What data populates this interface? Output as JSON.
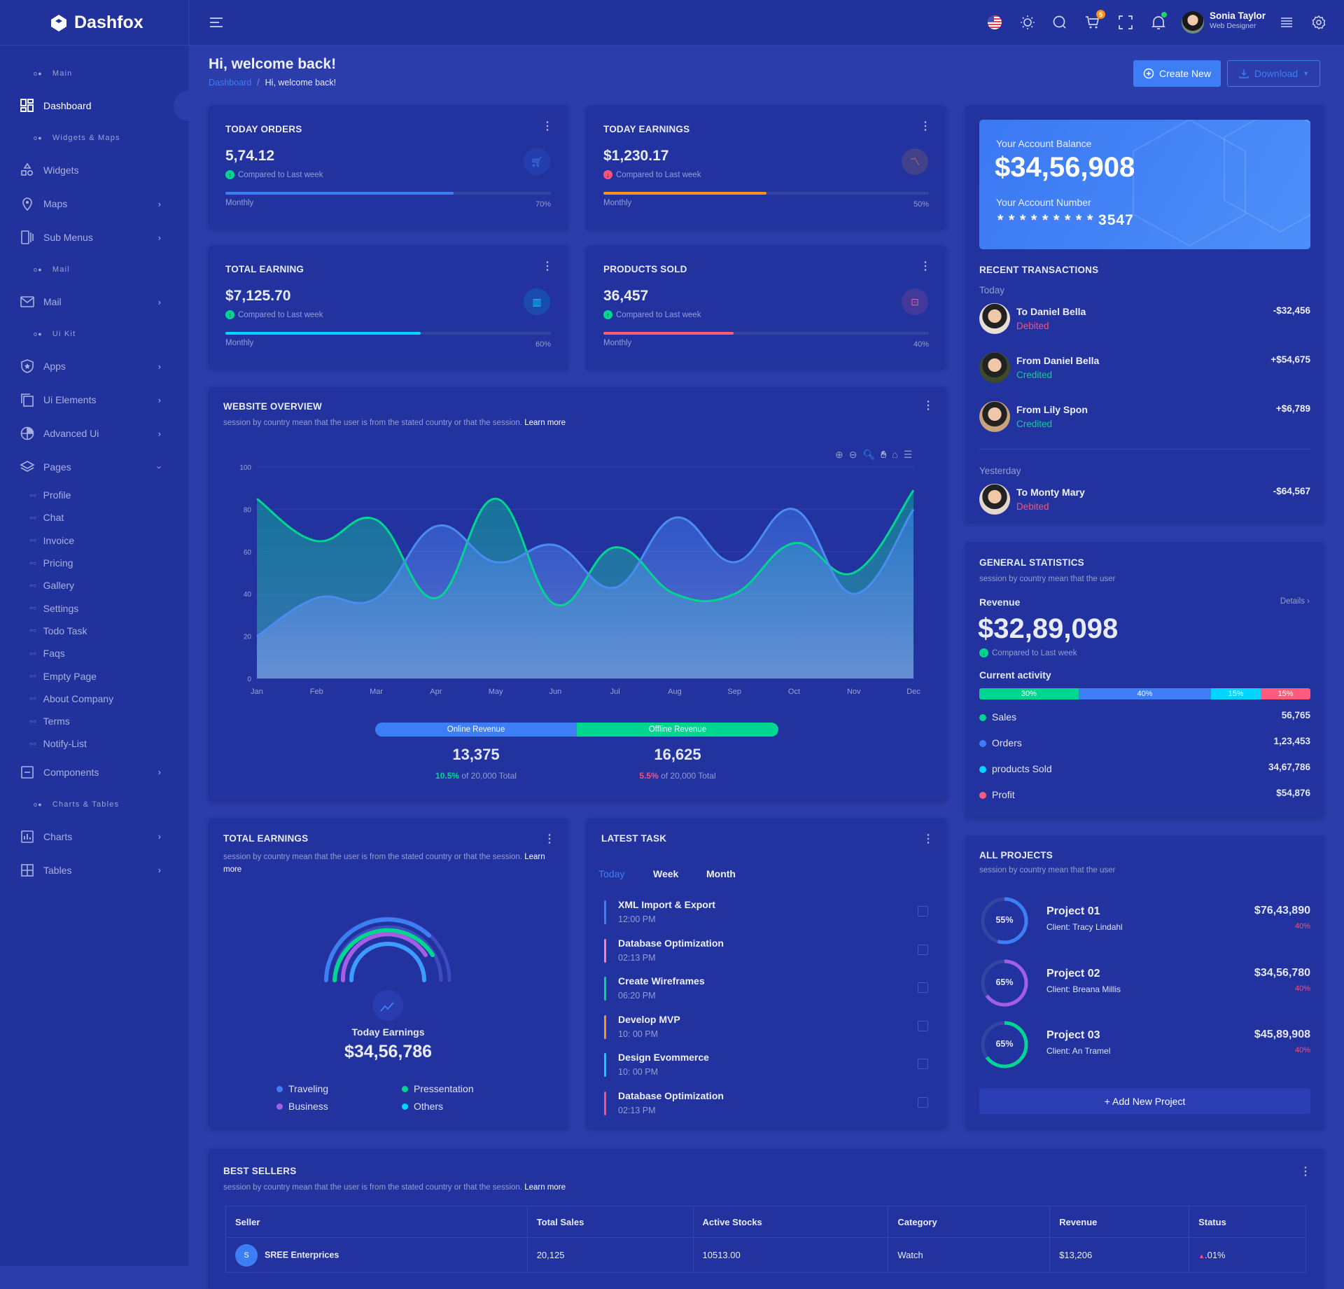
{
  "app": {
    "name": "Dashfox"
  },
  "header": {
    "cart_count": "5",
    "user": {
      "name": "Sonia Taylor",
      "role": "Web Designer"
    }
  },
  "sidebar": {
    "sections": [
      {
        "label": "Main",
        "items": [
          {
            "label": "Dashboard",
            "icon": "dashboard-icon",
            "active": true
          }
        ]
      },
      {
        "label": "Widgets & Maps",
        "items": [
          {
            "label": "Widgets",
            "icon": "widgets-icon"
          },
          {
            "label": "Maps",
            "icon": "map-pin-icon",
            "chevron": true
          },
          {
            "label": "Sub Menus",
            "icon": "sub-menus-icon",
            "chevron": true
          }
        ]
      },
      {
        "label": "Mail",
        "items": [
          {
            "label": "Mail",
            "icon": "mail-icon",
            "chevron": true
          }
        ]
      },
      {
        "label": "Ui Kit",
        "items": [
          {
            "label": "Apps",
            "icon": "apps-icon",
            "chevron": true
          },
          {
            "label": "Ui Elements",
            "icon": "ui-elements-icon",
            "chevron": true
          },
          {
            "label": "Advanced Ui",
            "icon": "advanced-ui-icon",
            "chevron": true
          },
          {
            "label": "Pages",
            "icon": "pages-icon",
            "expanded": true,
            "children": [
              "Profile",
              "Chat",
              "Invoice",
              "Pricing",
              "Gallery",
              "Settings",
              "Todo Task",
              "Faqs",
              "Empty Page",
              "About Company",
              "Terms",
              "Notify-List"
            ]
          },
          {
            "label": "Components",
            "icon": "components-icon",
            "chevron": true
          }
        ]
      },
      {
        "label": "Charts & Tables",
        "items": [
          {
            "label": "Charts",
            "icon": "charts-icon",
            "chevron": true
          },
          {
            "label": "Tables",
            "icon": "tables-icon",
            "chevron": true
          }
        ]
      }
    ]
  },
  "page": {
    "title": "Hi, welcome back!",
    "breadcrumb": [
      "Dashboard",
      "Hi, welcome back!"
    ],
    "create_label": "Create New",
    "download_label": "Download"
  },
  "stat_cards": [
    {
      "title": "TODAY ORDERS",
      "value": "5,74.12",
      "compare": "Compared to Last week",
      "trend": "up",
      "period": "Monthly",
      "percent": 70,
      "percent_label": "70%",
      "color": "#3d7ef5",
      "icon": "cart-icon"
    },
    {
      "title": "TODAY EARNINGS",
      "value": "$1,230.17",
      "compare": "Compared to Last week",
      "trend": "down",
      "period": "Monthly",
      "percent": 50,
      "percent_label": "50%",
      "color": "#f7931a",
      "icon": "chart-line-icon"
    },
    {
      "title": "TOTAL EARNING",
      "value": "$7,125.70",
      "compare": "Compared to Last week",
      "trend": "up",
      "period": "Monthly",
      "percent": 60,
      "percent_label": "60%",
      "color": "#00d4ff",
      "icon": "bar-chart-icon"
    },
    {
      "title": "PRODUCTS SOLD",
      "value": "36,457",
      "compare": "Compared to Last week",
      "trend": "up",
      "period": "Monthly",
      "percent": 40,
      "percent_label": "40%",
      "color": "#ff5b7a",
      "icon": "briefcase-icon"
    }
  ],
  "overview": {
    "title": "WEBSITE OVERVIEW",
    "desc": "session by country mean that the user is from the stated country or that the session.",
    "learn_more": "Learn more",
    "legend": [
      {
        "label": "Online Revenue",
        "color": "#3d7ef5",
        "value": "13,375",
        "pct": "10.5%",
        "pct_color": "#00d68f",
        "of": "of 20,000 Total"
      },
      {
        "label": "Offline Revenue",
        "color": "#00d68f",
        "value": "16,625",
        "pct": "5.5%",
        "pct_color": "#ff4f7b",
        "of": "of 20,000 Total"
      }
    ]
  },
  "chart_data": {
    "type": "area",
    "title": "WEBSITE OVERVIEW",
    "xlabel": "",
    "ylabel": "",
    "ylim": [
      0,
      100
    ],
    "yticks": [
      0,
      20,
      40,
      60,
      80,
      100
    ],
    "grid": true,
    "categories": [
      "Jan",
      "Feb",
      "Mar",
      "Apr",
      "May",
      "Jun",
      "Jul",
      "Aug",
      "Sep",
      "Oct",
      "Nov",
      "Dec"
    ],
    "series": [
      {
        "name": "Offline Revenue",
        "color": "#00d68f",
        "values": [
          85,
          65,
          75,
          38,
          85,
          35,
          62,
          40,
          40,
          64,
          50,
          89
        ]
      },
      {
        "name": "Online Revenue",
        "color": "#3d7ef5",
        "values": [
          20,
          38,
          38,
          72,
          55,
          63,
          43,
          76,
          55,
          80,
          40,
          80
        ]
      }
    ]
  },
  "balance": {
    "label": "Your Account Balance",
    "amount": "$34,56,908",
    "number_label": "Your Account Number",
    "number": "* * * * * * * * * 3547"
  },
  "transactions": {
    "title": "RECENT TRANSACTIONS",
    "groups": [
      {
        "label": "Today",
        "items": [
          {
            "name": "To Daniel Bella",
            "status": "Debited",
            "amount": "-$32,456"
          },
          {
            "name": "From Daniel Bella",
            "status": "Credited",
            "amount": "+$54,675"
          },
          {
            "name": "From Lily Spon",
            "status": "Credited",
            "amount": "+$6,789"
          }
        ]
      },
      {
        "label": "Yesterday",
        "items": [
          {
            "name": "To Monty Mary",
            "status": "Debited",
            "amount": "-$64,567"
          }
        ]
      }
    ]
  },
  "general_stats": {
    "title": "GENERAL STATISTICS",
    "sub": "session by country mean that the user",
    "revenue_label": "Revenue",
    "details": "Details",
    "revenue": "$32,89,098",
    "compare": "Compared to Last week",
    "activity_label": "Current activity",
    "segments": [
      {
        "label": "30%",
        "pct": 30,
        "color": "#00d68f"
      },
      {
        "label": "40%",
        "pct": 40,
        "color": "#3d7ef5"
      },
      {
        "label": "15%",
        "pct": 15,
        "color": "#00d4ff"
      },
      {
        "label": "15%",
        "pct": 15,
        "color": "#ff5b7a"
      }
    ],
    "rows": [
      {
        "label": "Sales",
        "value": "56,765",
        "color": "#00d68f"
      },
      {
        "label": "Orders",
        "value": "1,23,453",
        "color": "#3d7ef5"
      },
      {
        "label": "products Sold",
        "value": "34,67,786",
        "color": "#00d4ff"
      },
      {
        "label": "Profit",
        "value": "$54,876",
        "color": "#ff5b7a"
      }
    ]
  },
  "total_earnings": {
    "title": "TOTAL EARNINGS",
    "desc": "session by country mean that the user is from the stated country or that the session.",
    "learn_more": "Learn more",
    "label": "Today Earnings",
    "value": "$34,56,786",
    "legend": [
      {
        "label": "Traveling",
        "color": "#3d7ef5"
      },
      {
        "label": "Pressentation",
        "color": "#00d68f"
      },
      {
        "label": "Business",
        "color": "#a45ee6"
      },
      {
        "label": "Others",
        "color": "#00d4ff"
      }
    ]
  },
  "tasks": {
    "title": "LATEST TASK",
    "tabs": [
      "Today",
      "Week",
      "Month"
    ],
    "items": [
      {
        "title": "XML Import & Export",
        "time": "12:00 PM",
        "color": "#3d7ef5"
      },
      {
        "title": "Database Optimization",
        "time": "02:13 PM",
        "color": "#ff7fb0"
      },
      {
        "title": "Create Wireframes",
        "time": "06:20 PM",
        "color": "#00d68f"
      },
      {
        "title": "Develop MVP",
        "time": "10: 00 PM",
        "color": "#f7931a"
      },
      {
        "title": "Design Evommerce",
        "time": "10: 00 PM",
        "color": "#00d4ff"
      },
      {
        "title": "Database Optimization",
        "time": "02:13 PM",
        "color": "#ff4f7b"
      }
    ]
  },
  "projects": {
    "title": "ALL PROJECTS",
    "sub": "session by country mean that the user",
    "add_label": "+ Add New Project",
    "items": [
      {
        "name": "Project 01",
        "client": "Client: Tracy Lindahl",
        "amount": "$76,43,890",
        "change": "40%",
        "progress": 55,
        "progress_label": "55%",
        "color": "#3d7ef5"
      },
      {
        "name": "Project 02",
        "client": "Client: Breana Millis",
        "amount": "$34,56,780",
        "change": "40%",
        "progress": 65,
        "progress_label": "65%",
        "color": "#a45ee6"
      },
      {
        "name": "Project 03",
        "client": "Client: An Tramel",
        "amount": "$45,89,908",
        "change": "40%",
        "progress": 65,
        "progress_label": "65%",
        "color": "#00d68f"
      }
    ]
  },
  "best_sellers": {
    "title": "BEST SELLERS",
    "desc": "session by country mean that the user is from the stated country or that the session.",
    "learn_more": "Learn more",
    "columns": [
      "Seller",
      "Total Sales",
      "Active Stocks",
      "Category",
      "Revenue",
      "Status"
    ],
    "rows": [
      {
        "initial": "S",
        "seller": "SREE Enterprices",
        "total_sales": "20,125",
        "stocks": "10513.00",
        "category": "Watch",
        "revenue": "$13,206",
        "status": ".01%"
      }
    ]
  }
}
